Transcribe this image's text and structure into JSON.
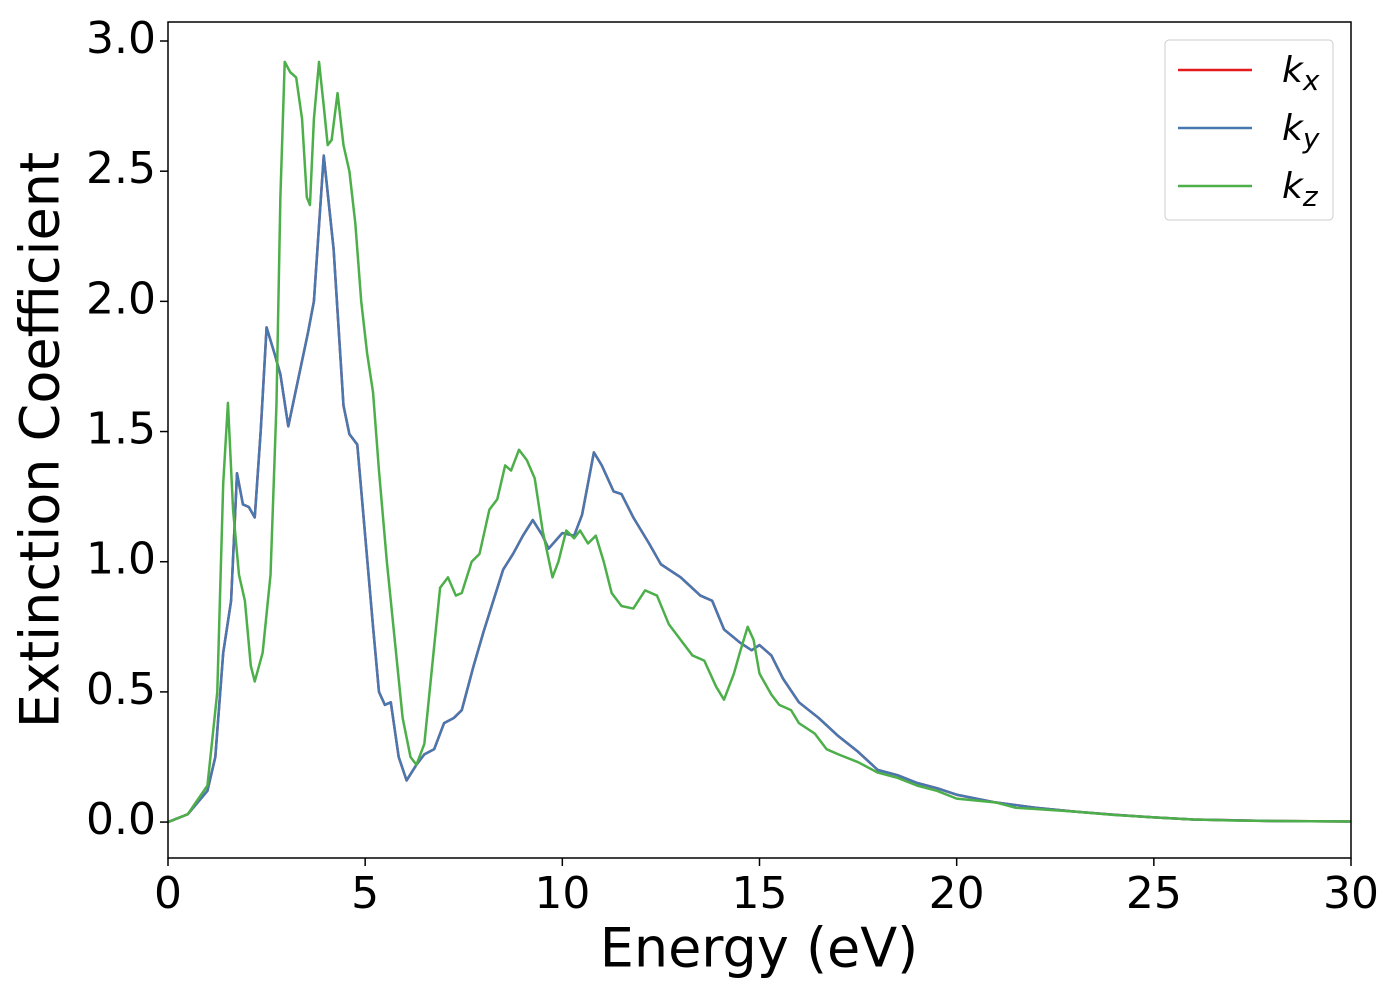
{
  "chart_data": {
    "type": "line",
    "xlabel": "Energy (eV)",
    "ylabel": "Extinction Coefficient",
    "xlim": [
      0,
      30
    ],
    "xticks": [
      0,
      5,
      10,
      15,
      20,
      25,
      30
    ],
    "ylim": [
      -0.138,
      3.073
    ],
    "yticks": [
      {
        "value": 0,
        "label": "0.0"
      },
      0.5,
      {
        "value": 1,
        "label": "1.0"
      },
      1.5,
      {
        "value": 2,
        "label": "2.0"
      },
      2.5,
      {
        "value": 3,
        "label": "3.0"
      }
    ],
    "legend": "upper right",
    "series": [
      {
        "name": "kx",
        "color": "#e41a1c",
        "x": [
          0,
          0.5,
          1.0,
          1.2,
          1.4,
          1.6,
          1.75,
          1.9,
          2.05,
          2.2,
          2.35,
          2.5,
          2.7,
          2.85,
          3.05,
          3.3,
          3.55,
          3.7,
          3.95,
          4.2,
          4.45,
          4.6,
          4.8,
          5.0,
          5.2,
          5.35,
          5.5,
          5.65,
          5.85,
          6.05,
          6.3,
          6.5,
          6.75,
          7.0,
          7.25,
          7.45,
          7.75,
          8.0,
          8.5,
          8.75,
          9.0,
          9.25,
          9.5,
          9.65,
          10.0,
          10.3,
          10.5,
          10.8,
          11.0,
          11.3,
          11.5,
          11.8,
          12.2,
          12.5,
          13.0,
          13.5,
          13.8,
          14.1,
          14.5,
          14.8,
          15.0,
          15.3,
          15.6,
          16.0,
          16.5,
          17.0,
          17.5,
          18.0,
          18.5,
          19.0,
          19.5,
          20.0,
          21.0,
          22.0,
          23.0,
          24.0,
          25.0,
          26.0,
          27.0,
          28.0,
          30.0
        ],
        "values": [
          0,
          0.03,
          0.12,
          0.25,
          0.65,
          0.85,
          1.34,
          1.22,
          1.21,
          1.17,
          1.5,
          1.9,
          1.8,
          1.72,
          1.52,
          1.7,
          1.88,
          2.0,
          2.56,
          2.2,
          1.6,
          1.49,
          1.45,
          1.1,
          0.75,
          0.5,
          0.45,
          0.46,
          0.25,
          0.16,
          0.22,
          0.26,
          0.28,
          0.38,
          0.4,
          0.43,
          0.6,
          0.73,
          0.97,
          1.03,
          1.1,
          1.16,
          1.1,
          1.05,
          1.11,
          1.1,
          1.18,
          1.42,
          1.37,
          1.27,
          1.26,
          1.17,
          1.07,
          0.99,
          0.94,
          0.87,
          0.85,
          0.74,
          0.69,
          0.66,
          0.68,
          0.64,
          0.55,
          0.46,
          0.4,
          0.33,
          0.27,
          0.2,
          0.18,
          0.15,
          0.13,
          0.105,
          0.075,
          0.055,
          0.04,
          0.028,
          0.018,
          0.01,
          0.007,
          0.004,
          0.002
        ]
      },
      {
        "name": "ky",
        "color": "#4878b0",
        "x": [
          0,
          0.5,
          1.0,
          1.2,
          1.4,
          1.6,
          1.75,
          1.9,
          2.05,
          2.2,
          2.35,
          2.5,
          2.7,
          2.85,
          3.05,
          3.3,
          3.55,
          3.7,
          3.95,
          4.2,
          4.45,
          4.6,
          4.8,
          5.0,
          5.2,
          5.35,
          5.5,
          5.65,
          5.85,
          6.05,
          6.3,
          6.5,
          6.75,
          7.0,
          7.25,
          7.45,
          7.75,
          8.0,
          8.5,
          8.75,
          9.0,
          9.25,
          9.5,
          9.65,
          10.0,
          10.3,
          10.5,
          10.8,
          11.0,
          11.3,
          11.5,
          11.8,
          12.2,
          12.5,
          13.0,
          13.5,
          13.8,
          14.1,
          14.5,
          14.8,
          15.0,
          15.3,
          15.6,
          16.0,
          16.5,
          17.0,
          17.5,
          18.0,
          18.5,
          19.0,
          19.5,
          20.0,
          21.0,
          22.0,
          23.0,
          24.0,
          25.0,
          26.0,
          27.0,
          28.0,
          30.0
        ],
        "values": [
          0,
          0.03,
          0.12,
          0.25,
          0.65,
          0.85,
          1.34,
          1.22,
          1.21,
          1.17,
          1.5,
          1.9,
          1.8,
          1.72,
          1.52,
          1.7,
          1.88,
          2.0,
          2.56,
          2.2,
          1.6,
          1.49,
          1.45,
          1.1,
          0.75,
          0.5,
          0.45,
          0.46,
          0.25,
          0.16,
          0.22,
          0.26,
          0.28,
          0.38,
          0.4,
          0.43,
          0.6,
          0.73,
          0.97,
          1.03,
          1.1,
          1.16,
          1.1,
          1.05,
          1.11,
          1.1,
          1.18,
          1.42,
          1.37,
          1.27,
          1.26,
          1.17,
          1.07,
          0.99,
          0.94,
          0.87,
          0.85,
          0.74,
          0.69,
          0.66,
          0.68,
          0.64,
          0.55,
          0.46,
          0.4,
          0.33,
          0.27,
          0.2,
          0.18,
          0.15,
          0.13,
          0.105,
          0.075,
          0.055,
          0.04,
          0.028,
          0.018,
          0.01,
          0.007,
          0.004,
          0.002
        ]
      },
      {
        "name": "kz",
        "color": "#4daf4a",
        "x": [
          0,
          0.5,
          1.0,
          1.25,
          1.4,
          1.52,
          1.65,
          1.8,
          1.95,
          2.1,
          2.2,
          2.4,
          2.6,
          2.75,
          2.85,
          2.96,
          3.1,
          3.25,
          3.4,
          3.52,
          3.6,
          3.7,
          3.83,
          3.95,
          4.05,
          4.15,
          4.3,
          4.45,
          4.6,
          4.75,
          4.9,
          5.05,
          5.2,
          5.35,
          5.55,
          5.75,
          5.95,
          6.15,
          6.3,
          6.5,
          6.7,
          6.9,
          7.1,
          7.3,
          7.45,
          7.7,
          7.9,
          8.15,
          8.35,
          8.55,
          8.7,
          8.9,
          9.1,
          9.3,
          9.5,
          9.75,
          9.9,
          10.1,
          10.3,
          10.45,
          10.65,
          10.85,
          11.05,
          11.25,
          11.5,
          11.8,
          12.1,
          12.4,
          12.7,
          13.0,
          13.3,
          13.6,
          13.9,
          14.1,
          14.35,
          14.5,
          14.7,
          14.85,
          15.0,
          15.3,
          15.5,
          15.8,
          16.0,
          16.4,
          16.7,
          17.0,
          17.5,
          18.0,
          18.5,
          19.0,
          19.5,
          20.0,
          21.0,
          21.5,
          22.0,
          23.0,
          24.0,
          25.0,
          26.0,
          27.0,
          28.0,
          30.0
        ],
        "values": [
          0,
          0.03,
          0.14,
          0.5,
          1.3,
          1.61,
          1.2,
          0.95,
          0.85,
          0.6,
          0.54,
          0.65,
          0.95,
          1.6,
          2.4,
          2.92,
          2.88,
          2.86,
          2.7,
          2.4,
          2.37,
          2.7,
          2.92,
          2.75,
          2.6,
          2.62,
          2.8,
          2.6,
          2.5,
          2.3,
          2.0,
          1.8,
          1.65,
          1.35,
          1.0,
          0.7,
          0.4,
          0.25,
          0.22,
          0.3,
          0.6,
          0.9,
          0.94,
          0.87,
          0.88,
          1.0,
          1.03,
          1.2,
          1.24,
          1.37,
          1.35,
          1.43,
          1.39,
          1.32,
          1.12,
          0.94,
          1.0,
          1.12,
          1.09,
          1.12,
          1.07,
          1.1,
          1.0,
          0.88,
          0.83,
          0.82,
          0.89,
          0.87,
          0.76,
          0.7,
          0.64,
          0.62,
          0.52,
          0.47,
          0.57,
          0.65,
          0.75,
          0.7,
          0.57,
          0.49,
          0.45,
          0.43,
          0.38,
          0.34,
          0.28,
          0.26,
          0.23,
          0.19,
          0.17,
          0.14,
          0.12,
          0.09,
          0.075,
          0.055,
          0.05,
          0.04,
          0.027,
          0.018,
          0.01,
          0.006,
          0.004,
          0.002
        ]
      }
    ]
  }
}
